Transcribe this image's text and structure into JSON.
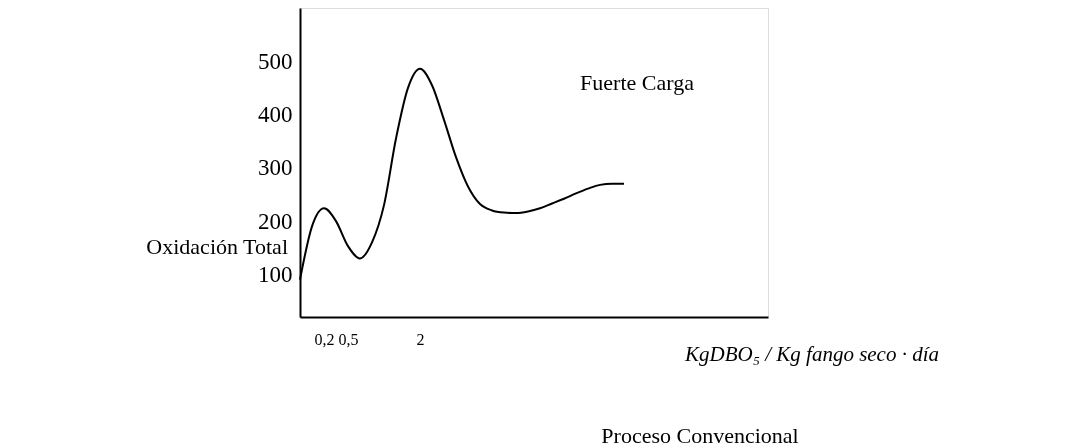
{
  "chart_data": {
    "type": "line",
    "categories": [
      null,
      null,
      "0,2",
      null,
      "0,5",
      null,
      null,
      null,
      null,
      null,
      "2",
      null,
      null,
      null,
      null,
      null,
      null,
      null,
      null,
      null,
      null,
      null,
      null,
      null,
      null,
      null,
      null,
      null,
      null,
      null,
      null,
      null,
      null,
      null,
      null,
      null,
      null,
      null,
      null,
      null
    ],
    "series": [
      {
        "color": "#000000",
        "values": [
          90,
          190,
          224,
          200,
          153,
          130,
          160,
          230,
          355,
          450,
          486,
          455,
          390,
          320,
          265,
          232,
          220,
          216,
          215,
          218,
          224,
          233,
          242,
          252,
          261,
          268,
          270,
          270,
          null,
          null,
          null,
          null,
          null,
          null,
          null,
          null,
          null,
          null,
          null,
          null
        ]
      }
    ],
    "ylim": [
      20,
      600
    ],
    "yticks": [
      100,
      200,
      300,
      400,
      500
    ],
    "grid": false,
    "marker": "none",
    "line_style": "solid",
    "xlabel": "KgDBO₅ / Kg fango seco · día",
    "annotations": [
      "Oxidación Total",
      "Fuerte Carga",
      "Proceso Convencional"
    ]
  }
}
